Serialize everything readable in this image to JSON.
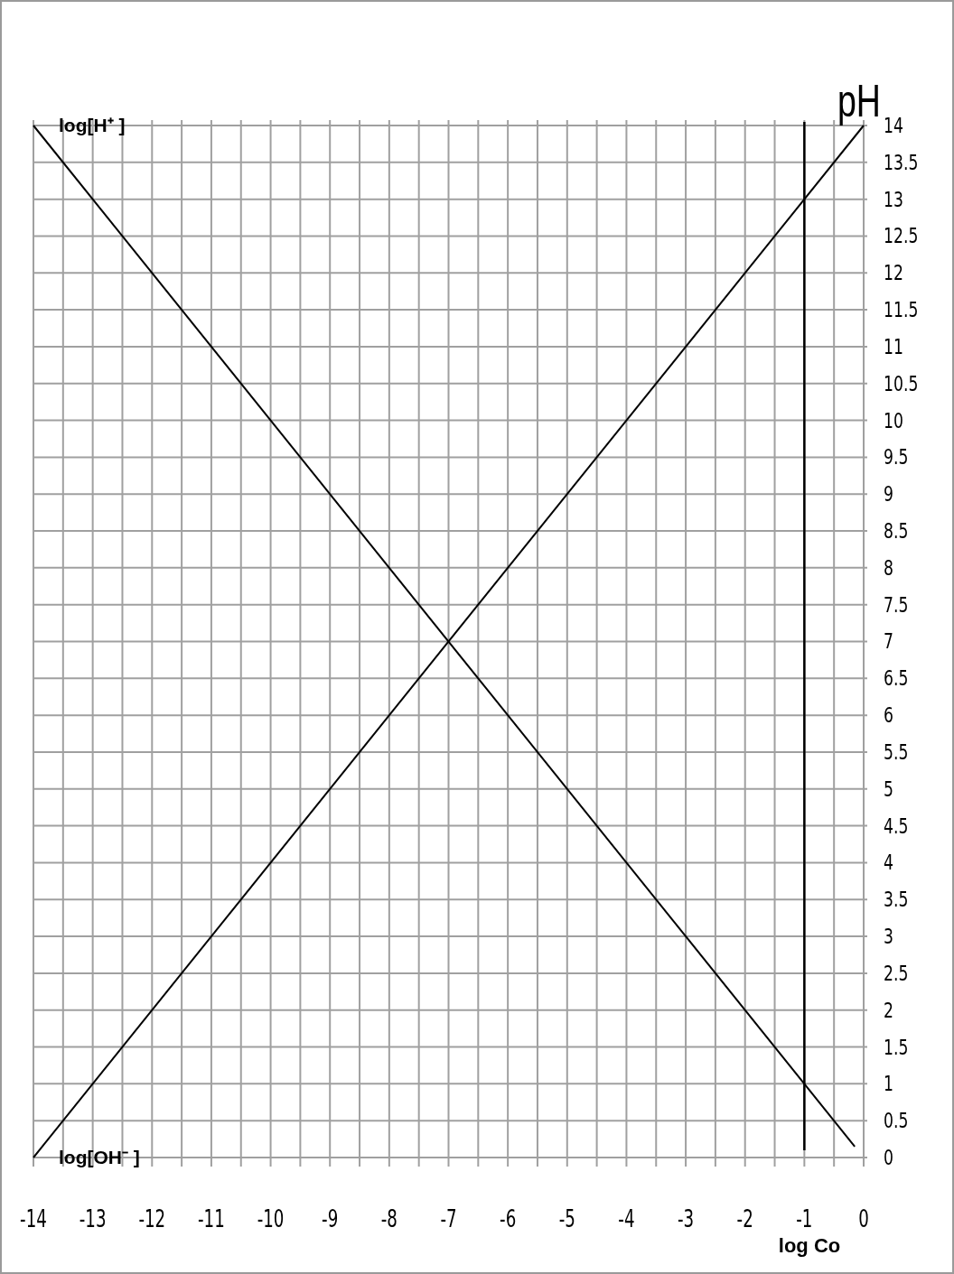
{
  "chart_data": {
    "type": "line",
    "xlabel": "log Co",
    "ylabel": "pH",
    "xlim": [
      -14,
      0
    ],
    "ylim": [
      0,
      14
    ],
    "xticks": [
      -14,
      {
        "value": -13.5,
        "label": null
      },
      -13,
      {
        "value": -12.5,
        "label": null
      },
      -12,
      {
        "value": -11.5,
        "label": null
      },
      -11,
      {
        "value": -10.5,
        "label": null
      },
      -10,
      {
        "value": -9.5,
        "label": null
      },
      -9,
      {
        "value": -8.5,
        "label": null
      },
      -8,
      {
        "value": -7.5,
        "label": null
      },
      -7,
      {
        "value": -6.5,
        "label": null
      },
      -6,
      {
        "value": -5.5,
        "label": null
      },
      -5,
      {
        "value": -4.5,
        "label": null
      },
      -4,
      {
        "value": -3.5,
        "label": null
      },
      -3,
      {
        "value": -2.5,
        "label": null
      },
      -2,
      {
        "value": -1.5,
        "label": null
      },
      -1,
      {
        "value": -0.5,
        "label": null
      },
      0
    ],
    "yticks": [
      0,
      0.5,
      1,
      1.5,
      2,
      2.5,
      3,
      3.5,
      4,
      4.5,
      5,
      5.5,
      6,
      6.5,
      7,
      7.5,
      8,
      8.5,
      9,
      9.5,
      10,
      10.5,
      11,
      11.5,
      12,
      12.5,
      13,
      13.5,
      14
    ],
    "grid": true,
    "marker": "none",
    "line_style": "solid",
    "series": [
      {
        "name": "log[H⁺ ]",
        "color": "#000000",
        "x": [
          -14,
          -0.15
        ],
        "values": [
          14,
          0.15
        ]
      },
      {
        "name": "log[OH⁻ ]",
        "color": "#000000",
        "x": [
          -14,
          0
        ],
        "values": [
          0,
          14
        ]
      }
    ],
    "ref_lines": [
      {
        "axis": "x",
        "value": -1,
        "color": "#000000"
      }
    ]
  }
}
